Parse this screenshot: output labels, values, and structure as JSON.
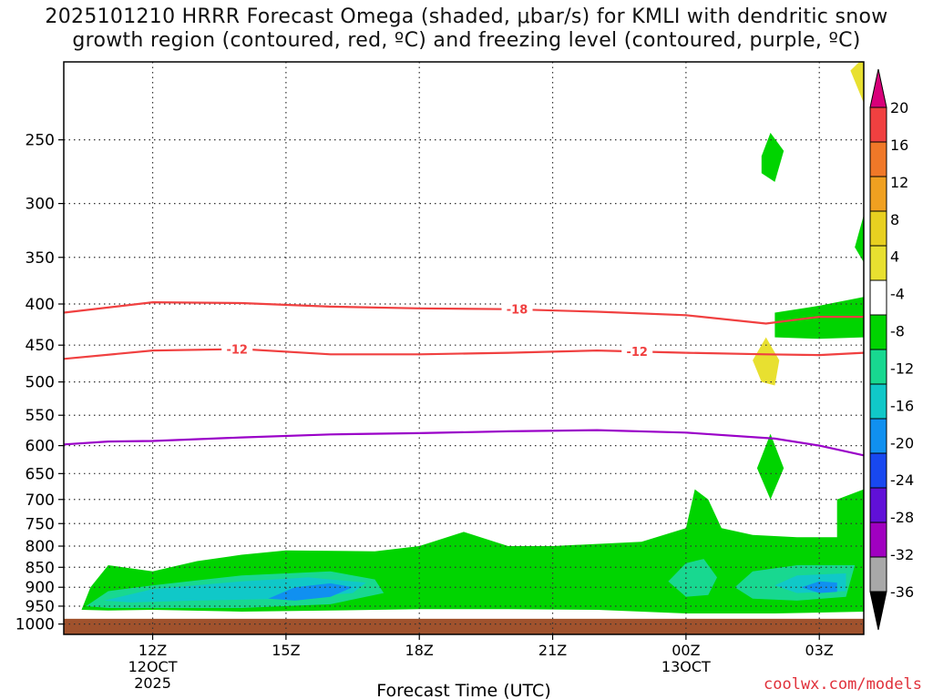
{
  "title": {
    "line1": "2025101210 HRRR Forecast Omega (shaded, μbar/s) for KMLI with dendritic snow",
    "line2": "growth region (contoured, red, ºC) and freezing level (contoured, purple, ºC)"
  },
  "credit": "coolwx.com/models",
  "chart_data": {
    "type": "contour",
    "xlabel": "Forecast Time (UTC)",
    "x_ticks": [
      {
        "label": "12Z",
        "sub1": "12OCT",
        "sub2": "2025"
      },
      {
        "label": "15Z",
        "sub1": "",
        "sub2": ""
      },
      {
        "label": "18Z",
        "sub1": "",
        "sub2": ""
      },
      {
        "label": "21Z",
        "sub1": "",
        "sub2": ""
      },
      {
        "label": "00Z",
        "sub1": "13OCT",
        "sub2": ""
      },
      {
        "label": "03Z",
        "sub1": "",
        "sub2": ""
      }
    ],
    "x_hours": [
      12,
      15,
      18,
      21,
      24,
      27
    ],
    "xlim_hours": [
      10,
      28
    ],
    "y_scale": "log-pressure",
    "ylim_hPa": [
      1030,
      200
    ],
    "y_ticks": [
      250,
      300,
      350,
      400,
      450,
      500,
      550,
      600,
      650,
      700,
      750,
      800,
      850,
      900,
      950,
      1000
    ],
    "grid": true,
    "colorbar": {
      "labels": [
        "20",
        "16",
        "12",
        "8",
        "4",
        "-4",
        "-8",
        "-12",
        "-16",
        "-20",
        "-24",
        "-28",
        "-32",
        "-36"
      ],
      "colors": [
        "#d8007a",
        "#f04040",
        "#f07828",
        "#f0a020",
        "#e8d020",
        "#e8e030",
        "#ffffff",
        "#00d400",
        "#18d890",
        "#10c8c8",
        "#1090f0",
        "#1848f0",
        "#6010d8",
        "#a000c0",
        "#a8a8a8",
        "#000000"
      ]
    },
    "contours": [
      {
        "label": "-18",
        "color": "#f04040",
        "points": [
          [
            10,
            410
          ],
          [
            12,
            398
          ],
          [
            14,
            399
          ],
          [
            16,
            403
          ],
          [
            18,
            405
          ],
          [
            20,
            406
          ],
          [
            22,
            409
          ],
          [
            24,
            413
          ],
          [
            25.8,
            423
          ],
          [
            27,
            415
          ],
          [
            28,
            415
          ]
        ]
      },
      {
        "label": "-12",
        "color": "#f04040",
        "points": [
          [
            10,
            468
          ],
          [
            12,
            457
          ],
          [
            14,
            455
          ],
          [
            16,
            462
          ],
          [
            18,
            462
          ],
          [
            20,
            460
          ],
          [
            22,
            457
          ],
          [
            24,
            460
          ],
          [
            25.8,
            462
          ],
          [
            27,
            463
          ],
          [
            28,
            460
          ]
        ]
      },
      {
        "label": "freezing level",
        "color": "#9a00c8",
        "points": [
          [
            10,
            598
          ],
          [
            11,
            593
          ],
          [
            12,
            592
          ],
          [
            14,
            586
          ],
          [
            16,
            581
          ],
          [
            18,
            579
          ],
          [
            20,
            576
          ],
          [
            22,
            574
          ],
          [
            24,
            578
          ],
          [
            26,
            588
          ],
          [
            27,
            600
          ],
          [
            28,
            617
          ]
        ]
      }
    ],
    "contour_labels": [
      {
        "text": "-18",
        "hour": 20.2,
        "p": 406
      },
      {
        "text": "-12",
        "hour": 13.9,
        "p": 455
      },
      {
        "text": "-12",
        "hour": 22.9,
        "p": 458
      }
    ],
    "shaded_regions": [
      {
        "level": "-4 to -8",
        "color": "#00d400",
        "points": [
          [
            10.4,
            960
          ],
          [
            10.6,
            900
          ],
          [
            11,
            845
          ],
          [
            12,
            860
          ],
          [
            13,
            835
          ],
          [
            14,
            820
          ],
          [
            15,
            810
          ],
          [
            17,
            812
          ],
          [
            18,
            800
          ],
          [
            19,
            768
          ],
          [
            20,
            800
          ],
          [
            21,
            800
          ],
          [
            23,
            790
          ],
          [
            24,
            760
          ],
          [
            24.2,
            680
          ],
          [
            24.5,
            700
          ],
          [
            24.8,
            760
          ],
          [
            25.5,
            775
          ],
          [
            26.5,
            780
          ],
          [
            27.4,
            780
          ],
          [
            27.4,
            700
          ],
          [
            28,
            680
          ],
          [
            28,
            965
          ],
          [
            26,
            970
          ],
          [
            24,
            970
          ],
          [
            22,
            960
          ],
          [
            20,
            958
          ],
          [
            18,
            958
          ],
          [
            16,
            962
          ],
          [
            14,
            965
          ],
          [
            12,
            960
          ],
          [
            11,
            962
          ]
        ]
      },
      {
        "level": "-4 to -8",
        "color": "#00d400",
        "points": [
          [
            25.7,
            262
          ],
          [
            25.9,
            245
          ],
          [
            26.2,
            258
          ],
          [
            26.0,
            282
          ],
          [
            25.7,
            275
          ]
        ]
      },
      {
        "level": "-4 to -8",
        "color": "#00d400",
        "points": [
          [
            25.6,
            640
          ],
          [
            25.9,
            580
          ],
          [
            26.2,
            640
          ],
          [
            25.9,
            700
          ]
        ]
      },
      {
        "level": "-4 to -8",
        "color": "#00d400",
        "points": [
          [
            26.0,
            440
          ],
          [
            26.0,
            410
          ],
          [
            27,
            402
          ],
          [
            28,
            392
          ],
          [
            28,
            440
          ],
          [
            27,
            442
          ]
        ]
      },
      {
        "level": "-4 to -8",
        "color": "#00d400",
        "points": [
          [
            27.8,
            340
          ],
          [
            28,
            310
          ],
          [
            28,
            355
          ]
        ]
      },
      {
        "level": "-8 to -12",
        "color": "#18d890",
        "points": [
          [
            10.5,
            950
          ],
          [
            11,
            910
          ],
          [
            12,
            895
          ],
          [
            14,
            870
          ],
          [
            16,
            860
          ],
          [
            17,
            880
          ],
          [
            17.2,
            915
          ],
          [
            16,
            945
          ],
          [
            14,
            955
          ],
          [
            12,
            955
          ],
          [
            11,
            955
          ]
        ]
      },
      {
        "level": "-8 to -12",
        "color": "#18d890",
        "points": [
          [
            23.6,
            885
          ],
          [
            24,
            840
          ],
          [
            24.4,
            830
          ],
          [
            24.7,
            875
          ],
          [
            24.5,
            920
          ],
          [
            24,
            925
          ]
        ]
      },
      {
        "level": "-8 to -12",
        "color": "#18d890",
        "points": [
          [
            25.1,
            900
          ],
          [
            25.5,
            860
          ],
          [
            26.5,
            845
          ],
          [
            27.8,
            845
          ],
          [
            27.6,
            925
          ],
          [
            26.5,
            935
          ],
          [
            25.5,
            930
          ]
        ]
      },
      {
        "level": "-12 to -16",
        "color": "#10c8c8",
        "points": [
          [
            10.9,
            935
          ],
          [
            12,
            905
          ],
          [
            14,
            885
          ],
          [
            15.5,
            875
          ],
          [
            16.8,
            888
          ],
          [
            16.5,
            915
          ],
          [
            15,
            930
          ],
          [
            13,
            935
          ],
          [
            11.5,
            940
          ]
        ]
      },
      {
        "level": "-12 to -16",
        "color": "#10c8c8",
        "points": [
          [
            26.0,
            895
          ],
          [
            26.5,
            870
          ],
          [
            27.6,
            865
          ],
          [
            27.6,
            910
          ],
          [
            26.5,
            915
          ]
        ]
      },
      {
        "level": "-16 to -20",
        "color": "#1090f0",
        "points": [
          [
            14.6,
            930
          ],
          [
            15.2,
            900
          ],
          [
            16,
            890
          ],
          [
            16.5,
            900
          ],
          [
            16,
            925
          ],
          [
            15.2,
            935
          ]
        ]
      },
      {
        "level": "-16 to -20",
        "color": "#1090f0",
        "points": [
          [
            26.6,
            900
          ],
          [
            27,
            885
          ],
          [
            27.4,
            888
          ],
          [
            27.4,
            912
          ],
          [
            27,
            915
          ]
        ]
      },
      {
        "level": "4 to 8",
        "color": "#e8e030",
        "points": [
          [
            25.5,
            470
          ],
          [
            25.8,
            440
          ],
          [
            26.1,
            470
          ],
          [
            26.0,
            505
          ],
          [
            25.7,
            500
          ]
        ]
      },
      {
        "level": "4 to 8",
        "color": "#e8e030",
        "points": [
          [
            27.7,
            205
          ],
          [
            27.9,
            200
          ],
          [
            28,
            200
          ],
          [
            28,
            225
          ]
        ]
      }
    ]
  }
}
